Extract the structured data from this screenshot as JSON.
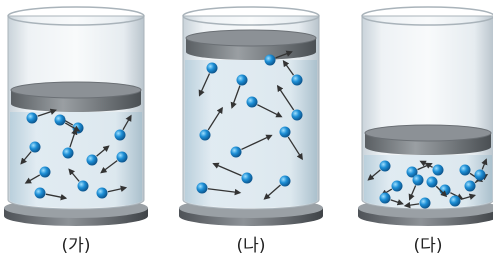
{
  "panels": [
    {
      "label": "(가)"
    },
    {
      "label": "(나)"
    },
    {
      "label": "(다)"
    }
  ]
}
